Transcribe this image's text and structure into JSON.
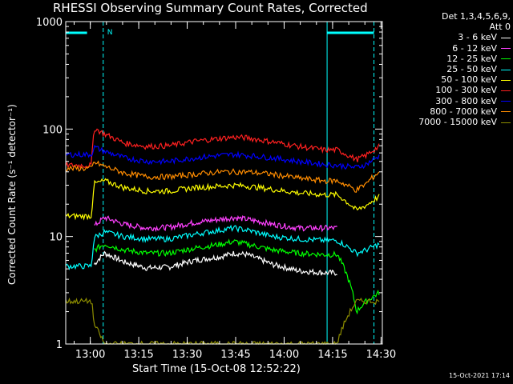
{
  "chart_data": {
    "type": "line",
    "title": "RHESSI Observing Summary Count Rates, Corrected",
    "xlabel": "Start Time (15-Oct-08 12:52:22)",
    "ylabel": "Corrected Count Rate (s⁻¹ detector⁻¹)",
    "yscale": "log",
    "ylim": [
      1,
      1000
    ],
    "xlim_minutes": [
      0,
      98
    ],
    "x_unit": "minutes after 12:52:22",
    "x_ticks": [
      {
        "label": "13:00",
        "minutes": 7.6
      },
      {
        "label": "13:15",
        "minutes": 22.6
      },
      {
        "label": "13:30",
        "minutes": 37.6
      },
      {
        "label": "13:45",
        "minutes": 52.6
      },
      {
        "label": "14:00",
        "minutes": 67.6
      },
      {
        "label": "14:15",
        "minutes": 82.6
      },
      {
        "label": "14:30",
        "minutes": 97.6
      }
    ],
    "y_ticks": [
      {
        "label": "1",
        "value": 1
      },
      {
        "label": "10",
        "value": 10
      },
      {
        "label": "100",
        "value": 100
      },
      {
        "label": "1000",
        "value": 1000
      }
    ],
    "legend_header": [
      "Det 1,3,4,5,6,9,",
      "Att 0"
    ],
    "series": [
      {
        "name": "3 - 6 keV",
        "color": "#ffffff",
        "x": [
          0,
          3,
          5,
          8,
          8.8,
          12,
          18,
          25,
          32,
          40,
          48,
          52,
          56,
          64,
          72,
          80,
          84,
          90,
          93,
          97
        ],
        "y": [
          null,
          null,
          null,
          null,
          5.5,
          7.0,
          5.8,
          5.1,
          5.2,
          6.0,
          6.5,
          7.0,
          6.8,
          5.5,
          4.8,
          4.6,
          4.6,
          null,
          null,
          null
        ]
      },
      {
        "name": "6 - 12 keV",
        "color": "#ff40ff",
        "x": [
          0,
          3,
          5,
          8,
          8.8,
          12,
          18,
          25,
          32,
          40,
          48,
          52,
          56,
          64,
          72,
          80,
          84,
          90,
          93,
          97
        ],
        "y": [
          null,
          null,
          null,
          null,
          12.5,
          15.0,
          13.0,
          12.0,
          12.2,
          13.5,
          14.5,
          15.0,
          14.5,
          13.0,
          12.0,
          12.0,
          12.0,
          null,
          null,
          null
        ]
      },
      {
        "name": "12 - 25 keV",
        "color": "#00ff00",
        "x": [
          0,
          3,
          5,
          8,
          8.8,
          12,
          18,
          25,
          32,
          40,
          48,
          52,
          56,
          64,
          72,
          80,
          84,
          90,
          93,
          97
        ],
        "y": [
          null,
          null,
          null,
          null,
          7.5,
          8.5,
          7.5,
          7.0,
          7.0,
          7.8,
          8.5,
          9.0,
          8.5,
          7.5,
          7.0,
          6.8,
          6.8,
          2.0,
          2.5,
          3.0
        ]
      },
      {
        "name": "25 - 50 keV",
        "color": "#00ffff",
        "x": [
          0,
          3,
          5,
          8,
          8.8,
          12,
          18,
          25,
          32,
          40,
          48,
          52,
          56,
          64,
          72,
          80,
          84,
          90,
          93,
          97
        ],
        "y": [
          5.3,
          5.3,
          5.3,
          5.3,
          9.8,
          11.0,
          10.0,
          9.5,
          9.5,
          10.5,
          11.5,
          12.0,
          11.5,
          10.0,
          9.5,
          9.2,
          9.2,
          7.0,
          7.5,
          8.5
        ]
      },
      {
        "name": "50 - 100 keV",
        "color": "#ffff00",
        "x": [
          0,
          3,
          5,
          8,
          8.8,
          12,
          18,
          25,
          32,
          40,
          48,
          52,
          56,
          64,
          72,
          80,
          84,
          90,
          93,
          97
        ],
        "y": [
          15.5,
          15.5,
          15.5,
          15.5,
          31,
          33,
          28.5,
          26.5,
          26.5,
          28.5,
          29.5,
          30,
          29.5,
          27.5,
          25.5,
          24.5,
          24.5,
          17.5,
          19.5,
          23.5
        ]
      },
      {
        "name": "100 - 300 keV",
        "color": "#ff2020",
        "x": [
          0,
          3,
          5,
          8,
          8.8,
          12,
          18,
          25,
          32,
          40,
          48,
          52,
          56,
          64,
          72,
          80,
          84,
          90,
          93,
          97
        ],
        "y": [
          46,
          46,
          46,
          46,
          102,
          90,
          74,
          69,
          70,
          77,
          82,
          84,
          83,
          76,
          69,
          64,
          64,
          52,
          57,
          69
        ]
      },
      {
        "name": "300 - 800 keV",
        "color": "#0000ff",
        "x": [
          0,
          3,
          5,
          8,
          8.8,
          12,
          18,
          25,
          32,
          40,
          48,
          52,
          56,
          64,
          72,
          80,
          84,
          90,
          93,
          97
        ],
        "y": [
          58,
          58,
          58,
          58,
          68,
          62,
          54,
          50,
          50,
          54,
          57,
          58,
          57,
          54,
          50,
          47,
          46,
          44,
          47,
          56
        ]
      },
      {
        "name": "800 - 7000 keV",
        "color": "#ff8c00",
        "x": [
          0,
          3,
          5,
          8,
          8.8,
          12,
          18,
          25,
          32,
          40,
          48,
          52,
          56,
          64,
          72,
          80,
          84,
          90,
          93,
          97
        ],
        "y": [
          43,
          43,
          43,
          43,
          49,
          45,
          39,
          36,
          36,
          38,
          40,
          40,
          40,
          38,
          35,
          33,
          33,
          27,
          31,
          40
        ]
      },
      {
        "name": "7000 - 15000 keV",
        "color": "#8c8c00",
        "x": [
          0,
          3,
          5,
          8,
          8.8,
          12,
          18,
          25,
          32,
          40,
          48,
          52,
          56,
          64,
          72,
          80,
          84,
          90,
          93,
          97
        ],
        "y": [
          2.5,
          2.5,
          2.5,
          2.5,
          1.5,
          1.0,
          1.0,
          1.0,
          1.0,
          1.0,
          1.0,
          1.0,
          1.0,
          1.0,
          1.0,
          1.0,
          1.0,
          2.5,
          2.5,
          2.5
        ]
      }
    ],
    "grid": false,
    "legend_placement": "top-right"
  },
  "plot_style": {
    "background": "#000000",
    "axis_color": "#ffffff",
    "flag_color": "#00ffff",
    "flag_marker": "N"
  },
  "timestamp": "15-Oct-2021 17:14"
}
